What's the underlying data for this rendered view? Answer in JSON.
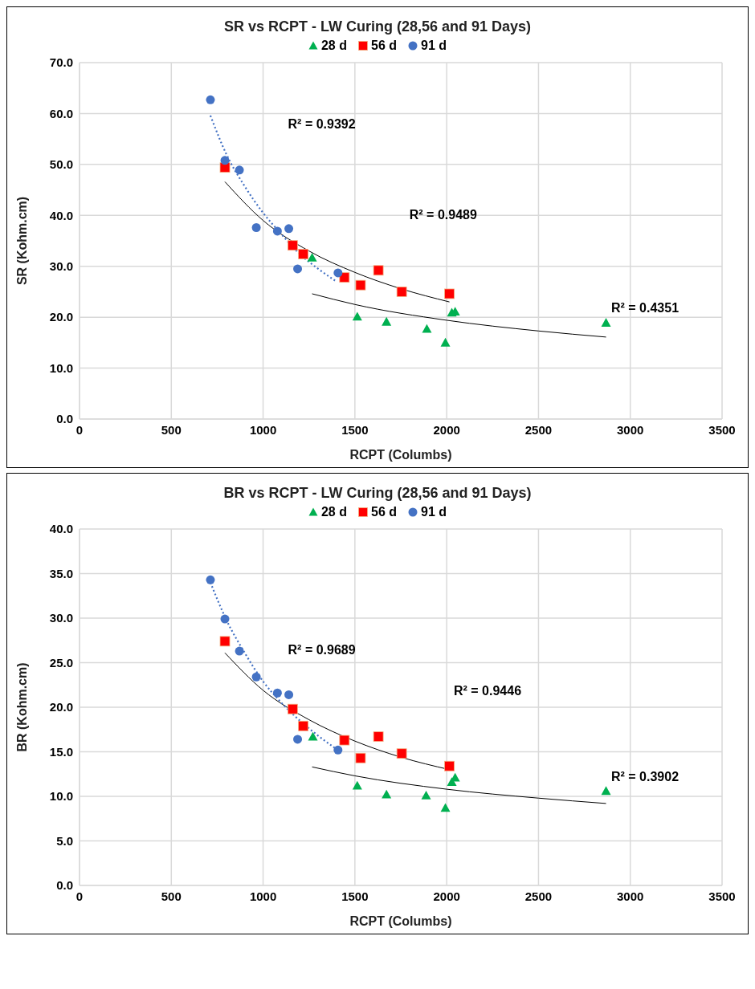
{
  "chart_data": [
    {
      "type": "scatter",
      "title": "SR vs RCPT - LW Curing (28,56 and 91 Days)",
      "xlabel": "RCPT (Columbs)",
      "ylabel": "SR (Kohm.cm)",
      "legend": "top",
      "grid": true,
      "xlim": [
        0,
        3500
      ],
      "xticks": [
        0,
        500,
        1000,
        1500,
        2000,
        2500,
        3000,
        3500
      ],
      "ylim": [
        0,
        70
      ],
      "yticks": [
        {
          "value": 0,
          "label": "0.0"
        },
        {
          "value": 10,
          "label": "10.0"
        },
        {
          "value": 20,
          "label": "20.0"
        },
        {
          "value": 30,
          "label": "30.0"
        },
        {
          "value": 40,
          "label": "40.0"
        },
        {
          "value": 50,
          "label": "50.0"
        },
        {
          "value": 60,
          "label": "60.0"
        },
        {
          "value": 70,
          "label": "70.0"
        }
      ],
      "series": [
        {
          "name": "28 d",
          "color": "#00b050",
          "marker": "triangle",
          "x": [
            1267,
            1513,
            1672,
            1892,
            1993,
            2028,
            2046,
            2868
          ],
          "values": [
            31.7,
            20.1,
            19.1,
            17.7,
            15.0,
            20.9,
            21.1,
            18.9
          ]
        },
        {
          "name": "56 d",
          "color": "#ff0000",
          "marker": "square",
          "x": [
            792,
            1161,
            1219,
            1443,
            1531,
            1628,
            1755,
            2015
          ],
          "values": [
            49.4,
            34.1,
            32.4,
            27.8,
            26.3,
            29.2,
            25.0,
            24.6
          ]
        },
        {
          "name": "91 d",
          "color": "#4472c4",
          "marker": "circle",
          "x": [
            713,
            792,
            871,
            963,
            1078,
            1140,
            1188,
            1408
          ],
          "values": [
            62.7,
            50.8,
            48.9,
            37.6,
            36.9,
            37.4,
            29.5,
            28.7
          ]
        },
        {
          "type": "line",
          "color": "#000000",
          "line_style": "solid",
          "marker": "none",
          "x": [
            1267,
            1500,
            2000,
            2500,
            2868
          ],
          "values": [
            24.6,
            22.5,
            19.4,
            17.3,
            16.1
          ]
        },
        {
          "type": "line",
          "color": "#000000",
          "line_style": "solid",
          "marker": "none",
          "x": [
            792,
            1000,
            1250,
            1500,
            1750,
            2015
          ],
          "values": [
            46.6,
            39.0,
            33.0,
            28.8,
            25.6,
            23.0
          ]
        },
        {
          "type": "line",
          "color": "#4472c4",
          "line_style": "dotted",
          "marker": "none",
          "x": [
            713,
            800,
            900,
            1000,
            1100,
            1200,
            1300,
            1400
          ],
          "values": [
            59.6,
            52.0,
            45.7,
            40.5,
            36.3,
            32.4,
            29.5,
            27.0
          ]
        }
      ],
      "annotations": [
        "R² = 0.9392",
        "R² = 0.9489",
        "R² = 0.4351"
      ]
    },
    {
      "type": "scatter",
      "title": "BR vs RCPT - LW Curing (28,56 and 91 Days)",
      "xlabel": "RCPT (Columbs)",
      "ylabel": "BR (Kohm.cm)",
      "legend": "top",
      "grid": true,
      "xlim": [
        0,
        3500
      ],
      "xticks": [
        0,
        500,
        1000,
        1500,
        2000,
        2500,
        3000,
        3500
      ],
      "ylim": [
        0,
        40
      ],
      "yticks": [
        {
          "value": 0,
          "label": "0.0"
        },
        {
          "value": 5,
          "label": "5.0"
        },
        {
          "value": 10,
          "label": "10.0"
        },
        {
          "value": 15,
          "label": "15.0"
        },
        {
          "value": 20,
          "label": "20.0"
        },
        {
          "value": 25,
          "label": "25.0"
        },
        {
          "value": 30,
          "label": "30.0"
        },
        {
          "value": 35,
          "label": "35.0"
        },
        {
          "value": 40,
          "label": "40.0"
        }
      ],
      "series": [
        {
          "name": "28 d",
          "color": "#00b050",
          "marker": "triangle",
          "x": [
            1271,
            1513,
            1672,
            1888,
            1993,
            2028,
            2046,
            2868
          ],
          "values": [
            16.7,
            11.2,
            10.2,
            10.1,
            8.7,
            11.6,
            12.1,
            10.6
          ]
        },
        {
          "name": "56 d",
          "color": "#ff0000",
          "marker": "square",
          "x": [
            792,
            1161,
            1219,
            1443,
            1531,
            1628,
            1755,
            2015
          ],
          "values": [
            27.4,
            19.8,
            17.9,
            16.3,
            14.3,
            16.7,
            14.8,
            13.4
          ]
        },
        {
          "name": "91 d",
          "color": "#4472c4",
          "marker": "circle",
          "x": [
            713,
            792,
            871,
            963,
            1078,
            1140,
            1188,
            1408
          ],
          "values": [
            34.3,
            29.9,
            26.3,
            23.4,
            21.6,
            21.4,
            16.4,
            15.2
          ]
        },
        {
          "type": "line",
          "color": "#000000",
          "line_style": "solid",
          "marker": "none",
          "x": [
            1267,
            1500,
            2000,
            2500,
            2868
          ],
          "values": [
            13.3,
            12.3,
            10.8,
            9.8,
            9.2
          ]
        },
        {
          "type": "line",
          "color": "#000000",
          "line_style": "solid",
          "marker": "none",
          "x": [
            792,
            1000,
            1250,
            1500,
            1750,
            2015
          ],
          "values": [
            26.1,
            21.9,
            18.6,
            16.2,
            14.4,
            13.0
          ]
        },
        {
          "type": "line",
          "color": "#4472c4",
          "line_style": "dotted",
          "marker": "none",
          "x": [
            713,
            800,
            900,
            1000,
            1100,
            1200,
            1300,
            1400
          ],
          "values": [
            34.0,
            29.8,
            26.1,
            22.9,
            20.5,
            18.5,
            16.8,
            15.3
          ]
        }
      ],
      "annotations": [
        "R² = 0.9689",
        "R² = 0.9446",
        "R² = 0.3902"
      ]
    }
  ]
}
